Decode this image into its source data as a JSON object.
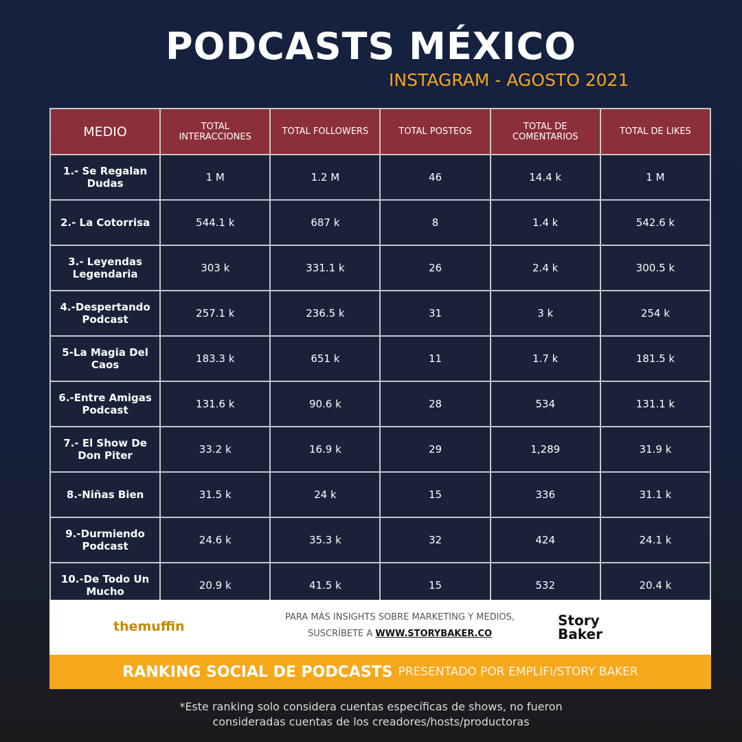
{
  "header": {
    "title": "PODCASTS MÉXICO",
    "subtitle": "INSTAGRAM - AGOSTO 2021"
  },
  "table": {
    "columns": [
      "MEDIO",
      "TOTAL INTERACCIONES",
      "TOTAL FOLLOWERS",
      "TOTAL POSTEOS",
      "TOTAL DE COMENTARIOS",
      "TOTAL DE LIKES"
    ],
    "rows": [
      [
        "1.- Se Regalan Dudas",
        "1 M",
        "1.2 M",
        "46",
        "14.4 k",
        "1 M"
      ],
      [
        "2.- La Cotorrisa",
        "544.1 k",
        "687 k",
        "8",
        "1.4 k",
        "542.6 k"
      ],
      [
        "3.- Leyendas Legendaria",
        "303 k",
        "331.1 k",
        "26",
        "2.4 k",
        "300.5 k"
      ],
      [
        "4.-Despertando Podcast",
        "257.1 k",
        "236.5 k",
        "31",
        "3 k",
        "254 k"
      ],
      [
        "5-La Magia Del Caos",
        "183.3 k",
        "651 k",
        "11",
        "1.7 k",
        "181.5 k"
      ],
      [
        "6.-Entre Amigas Podcast",
        "131.6 k",
        "90.6 k",
        "28",
        "534",
        "131.1 k"
      ],
      [
        "7.- El Show De Don Piter",
        "33.2 k",
        "16.9 k",
        "29",
        "1,289",
        "31.9 k"
      ],
      [
        "8.-Niñas Bien",
        "31.5 k",
        "24 k",
        "15",
        "336",
        "31.1 k"
      ],
      [
        "9.-Durmiendo Podcast",
        "24.6 k",
        "35.3 k",
        "32",
        "424",
        "24.1 k"
      ],
      [
        "10.-De Todo Un Mucho",
        "20.9 k",
        "41.5 k",
        "15",
        "532",
        "20.4 k"
      ]
    ]
  },
  "banner": {
    "left_logo": "themuffin",
    "line1": "PARA MÁS INSIGHTS SOBRE MARKETING Y MEDIOS,",
    "line2_prefix": "SUSCRÍBETE A",
    "link": "WWW.STORYBAKER.CO",
    "right_logo": "Story Baker"
  },
  "ranking": {
    "title": "RANKING SOCIAL DE PODCASTS",
    "subtitle": "PRESENTADO POR EMPLIFI/STORY BAKER"
  },
  "note": "*Este ranking solo considera cuentas específicas de shows, no fueron consideradas cuentas de los creadores/hosts/productoras"
}
